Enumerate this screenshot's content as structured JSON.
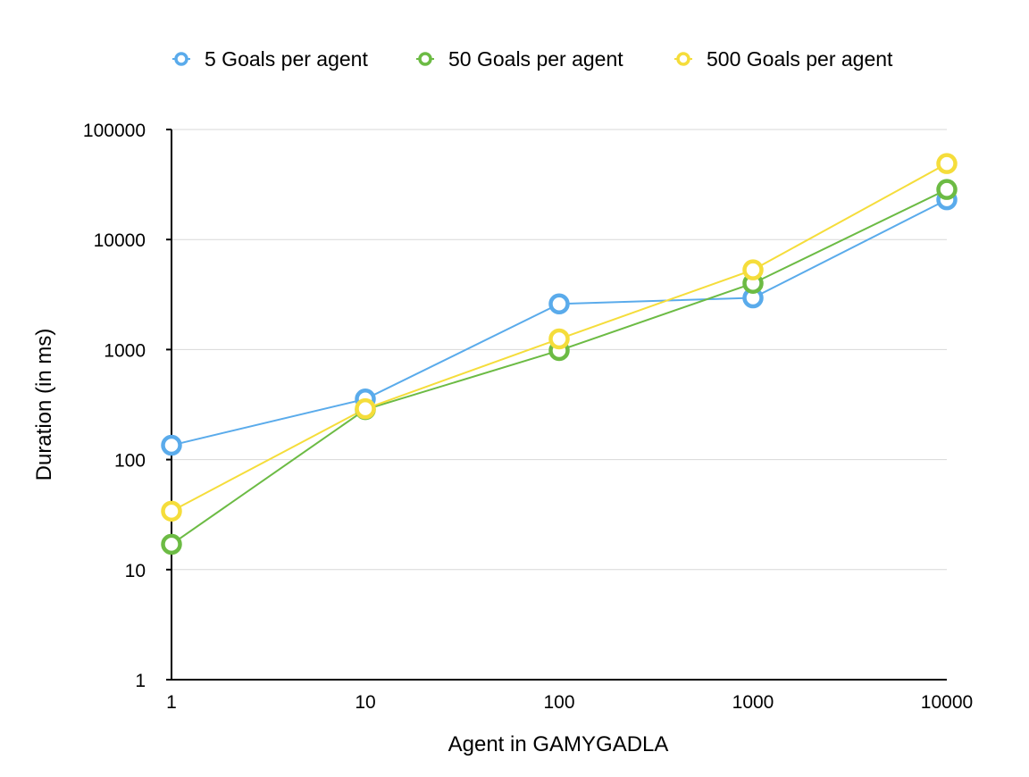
{
  "chart_data": {
    "type": "line",
    "title": "",
    "xlabel": "Agent in GAMYGADLA",
    "ylabel": "Duration (in ms)",
    "x_scale": "log",
    "y_scale": "log",
    "x": [
      1,
      10,
      100,
      1000,
      10000
    ],
    "x_tick_labels": [
      "1",
      "10",
      "100",
      "1000",
      "10000"
    ],
    "y_tick_labels": [
      "1",
      "10",
      "100",
      "1000",
      "10000",
      "100000"
    ],
    "xlim": [
      1,
      10000
    ],
    "ylim": [
      1,
      100000
    ],
    "grid": "horizontal",
    "legend_position": "top",
    "series": [
      {
        "name": "5 Goals per agent",
        "color": "#5aabeb",
        "values": [
          135,
          355,
          2600,
          2950,
          23000
        ]
      },
      {
        "name": "50 Goals per agent",
        "color": "#6cbb44",
        "values": [
          17,
          285,
          980,
          4000,
          28500
        ]
      },
      {
        "name": "500 Goals per agent",
        "color": "#f5dd3b",
        "values": [
          34,
          290,
          1250,
          5300,
          49000
        ]
      }
    ]
  }
}
